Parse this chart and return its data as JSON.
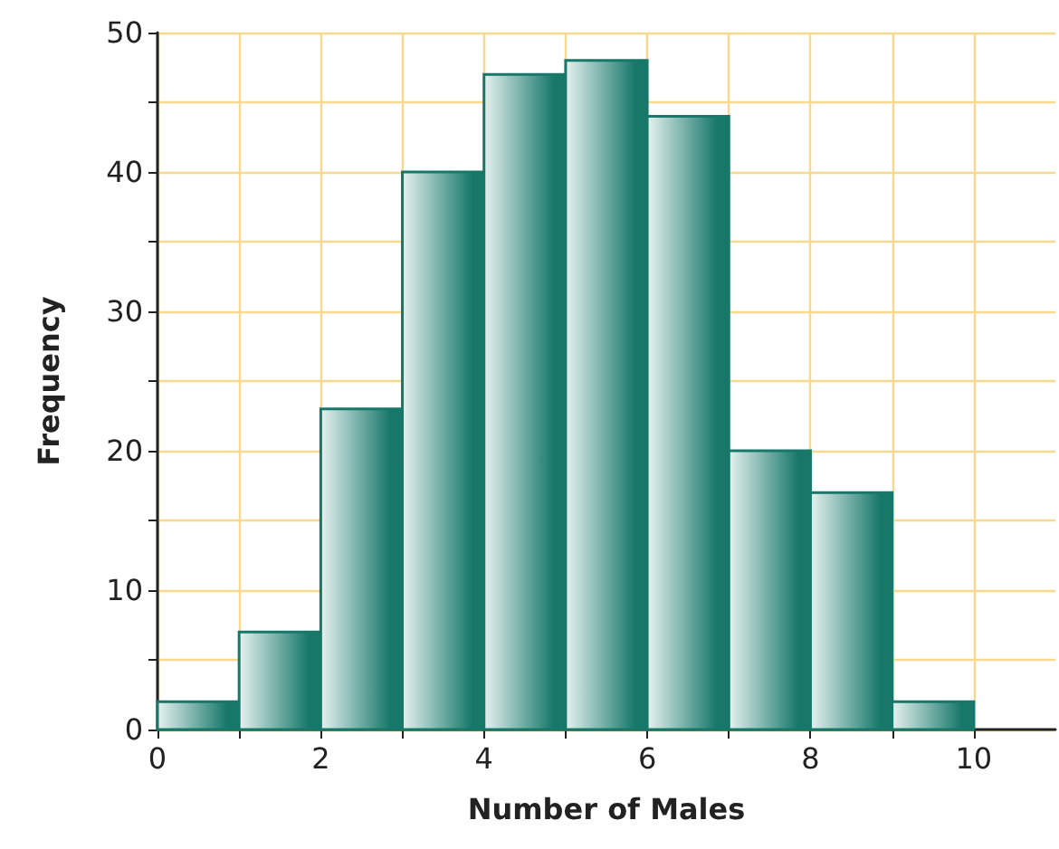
{
  "chart_data": {
    "type": "histogram",
    "xlabel": "Number of Males",
    "ylabel": "Frequency",
    "bins": [
      0,
      1,
      2,
      3,
      4,
      5,
      6,
      7,
      8,
      9,
      10
    ],
    "values": [
      2,
      7,
      23,
      40,
      47,
      48,
      44,
      20,
      17,
      2
    ],
    "color": "#17786a",
    "xlim": [
      0,
      11
    ],
    "xticks": [
      0,
      {
        "value": 1,
        "label": null
      },
      2,
      {
        "value": 3,
        "label": null
      },
      4,
      {
        "value": 5,
        "label": null
      },
      6,
      {
        "value": 7,
        "label": null
      },
      8,
      {
        "value": 9,
        "label": null
      },
      10
    ],
    "ylim": [
      0,
      50
    ],
    "yticks": [
      0,
      {
        "value": 5,
        "label": null
      },
      10,
      {
        "value": 15,
        "label": null
      },
      20,
      {
        "value": 25,
        "label": null
      },
      30,
      {
        "value": 35,
        "label": null
      },
      40,
      {
        "value": 45,
        "label": null
      },
      50
    ],
    "grid": true
  }
}
